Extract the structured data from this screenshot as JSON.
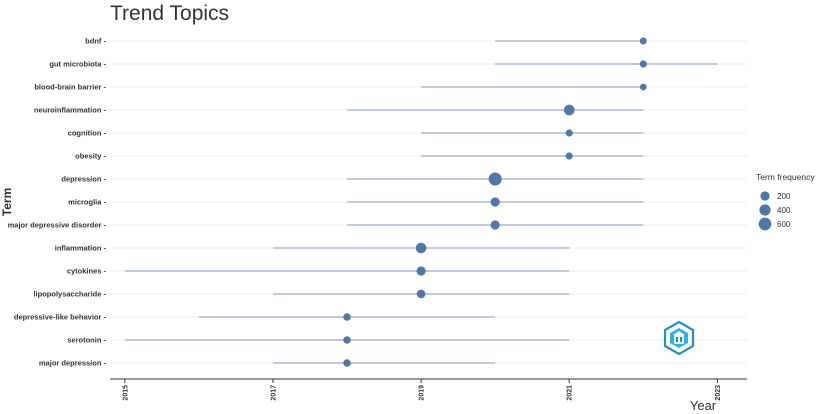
{
  "chart_data": {
    "type": "scatter",
    "title": "Trend Topics",
    "xlabel": "Year",
    "ylabel": "Term",
    "xlim": [
      2014.8,
      2023.4
    ],
    "x_ticks": [
      "2015",
      "2017",
      "2019",
      "2021",
      "2023"
    ],
    "grid": true,
    "legend": {
      "title": "Term frequency",
      "position": "right",
      "entries": [
        {
          "label": "200",
          "value": 200
        },
        {
          "label": "400",
          "value": 400
        },
        {
          "label": "600",
          "value": 600
        }
      ]
    },
    "colors": {
      "point": "#4f78a8",
      "segment": "#a9b8d3",
      "grid": "#ececec",
      "axis": "#333333"
    },
    "terms": [
      {
        "term": "bdnf",
        "start": 2020,
        "end": 2022,
        "median": 2022,
        "frequency": 50
      },
      {
        "term": "gut microbiota",
        "start": 2020,
        "end": 2023,
        "median": 2022,
        "frequency": 60
      },
      {
        "term": "blood-brain barrier",
        "start": 2019,
        "end": 2022,
        "median": 2022,
        "frequency": 40
      },
      {
        "term": "neuroinflammation",
        "start": 2018,
        "end": 2022,
        "median": 2021,
        "frequency": 340
      },
      {
        "term": "cognition",
        "start": 2019,
        "end": 2022,
        "median": 2021,
        "frequency": 60
      },
      {
        "term": "obesity",
        "start": 2019,
        "end": 2022,
        "median": 2021,
        "frequency": 60
      },
      {
        "term": "depression",
        "start": 2018,
        "end": 2022,
        "median": 2020,
        "frequency": 650
      },
      {
        "term": "microglia",
        "start": 2018,
        "end": 2022,
        "median": 2020,
        "frequency": 200
      },
      {
        "term": "major depressive disorder",
        "start": 2018,
        "end": 2022,
        "median": 2020,
        "frequency": 190
      },
      {
        "term": "inflammation",
        "start": 2017,
        "end": 2021,
        "median": 2019,
        "frequency": 320
      },
      {
        "term": "cytokines",
        "start": 2015,
        "end": 2021,
        "median": 2019,
        "frequency": 190
      },
      {
        "term": "lipopolysaccharide",
        "start": 2017,
        "end": 2021,
        "median": 2019,
        "frequency": 150
      },
      {
        "term": "depressive-like behavior",
        "start": 2016,
        "end": 2020,
        "median": 2018,
        "frequency": 80
      },
      {
        "term": "serotonin",
        "start": 2015,
        "end": 2021,
        "median": 2018,
        "frequency": 80
      },
      {
        "term": "major depression",
        "start": 2017,
        "end": 2020,
        "median": 2018,
        "frequency": 80
      }
    ]
  }
}
